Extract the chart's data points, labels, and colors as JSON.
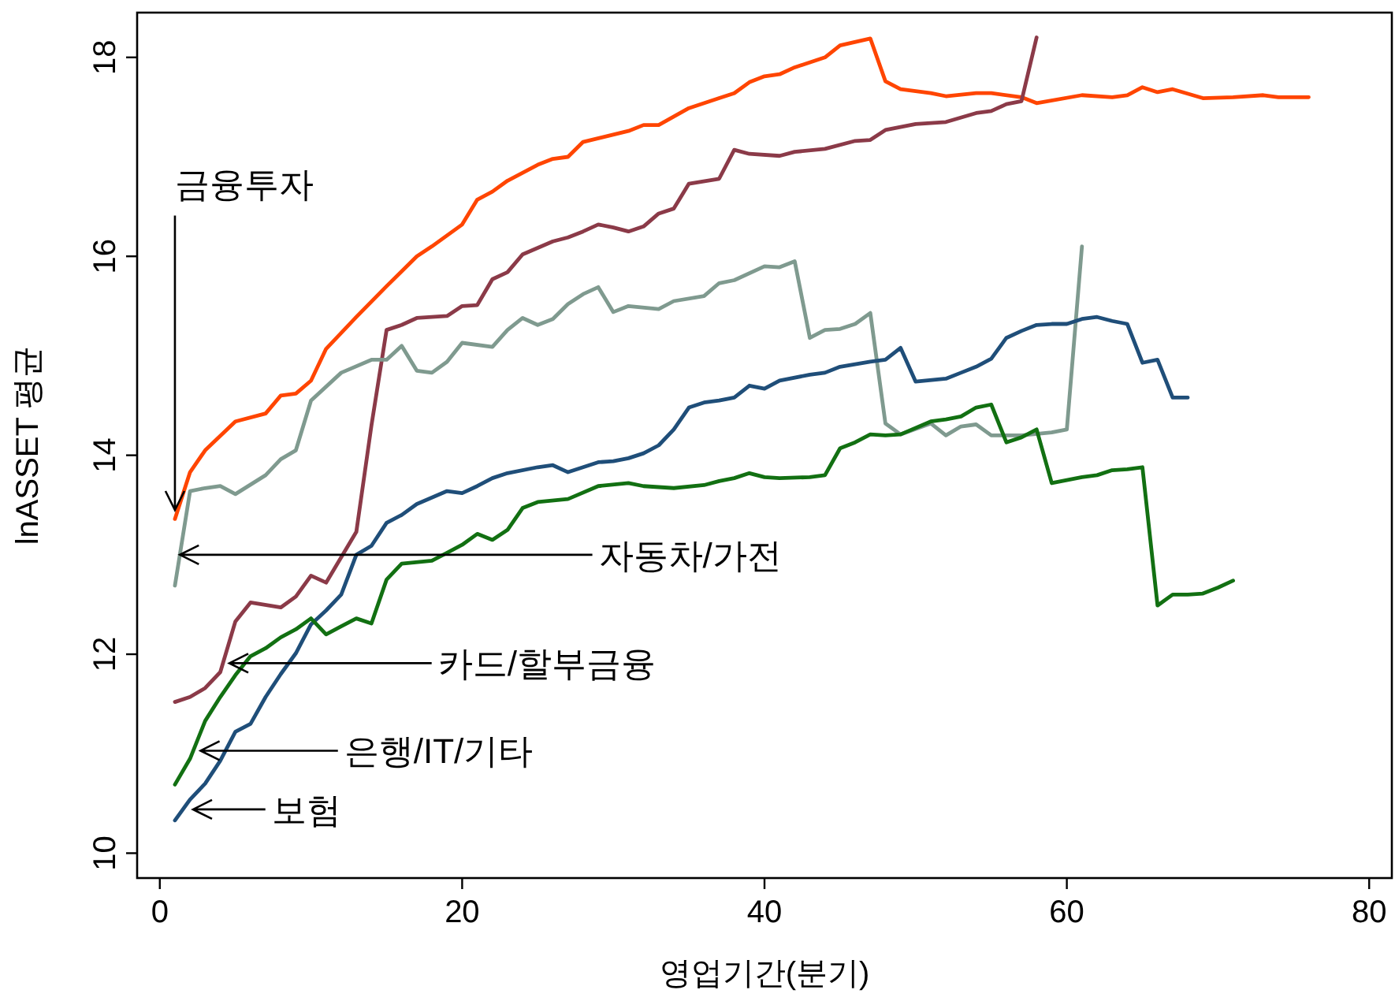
{
  "chart_data": {
    "type": "line",
    "xlabel": "영업기간(분기)",
    "ylabel": "lnASSET 평균",
    "xlim": [
      -1.5,
      81.5
    ],
    "ylim": [
      9.75,
      18.45
    ],
    "xticks": [
      0,
      20,
      40,
      60,
      80
    ],
    "yticks": [
      10,
      12,
      14,
      16,
      18
    ],
    "series": [
      {
        "color": "#ff4500",
        "x": [
          1,
          2,
          3,
          5,
          7,
          8,
          9,
          10,
          11,
          13,
          15,
          17,
          18,
          20,
          21,
          22,
          23,
          25,
          26,
          27,
          28,
          31,
          32,
          33,
          35,
          37,
          38,
          39,
          40,
          41,
          42,
          44,
          45,
          47,
          48,
          49,
          51,
          52,
          54,
          55,
          57,
          58,
          61,
          63,
          64,
          65,
          66,
          67,
          69,
          71,
          73,
          74,
          76
        ],
        "values": [
          13.36,
          13.83,
          14.05,
          14.34,
          14.42,
          14.6,
          14.62,
          14.75,
          15.07,
          15.39,
          15.7,
          16.0,
          16.1,
          16.32,
          16.57,
          16.65,
          16.76,
          16.92,
          16.98,
          17.0,
          17.15,
          17.26,
          17.32,
          17.32,
          17.49,
          17.59,
          17.64,
          17.75,
          17.81,
          17.83,
          17.9,
          18.0,
          18.12,
          18.19,
          17.76,
          17.68,
          17.64,
          17.61,
          17.64,
          17.64,
          17.6,
          17.54,
          17.62,
          17.6,
          17.62,
          17.7,
          17.65,
          17.68,
          17.59,
          17.6,
          17.62,
          17.6,
          17.6
        ]
      },
      {
        "color": "#8b3a48",
        "x": [
          1,
          2,
          3,
          4,
          5,
          6,
          8,
          9,
          10,
          11,
          13,
          14,
          15,
          16,
          17,
          19,
          20,
          21,
          22,
          23,
          24,
          26,
          27,
          28,
          29,
          30,
          31,
          32,
          33,
          34,
          35,
          37,
          38,
          39,
          41,
          42,
          44,
          46,
          47,
          48,
          50,
          52,
          54,
          55,
          56,
          57,
          58
        ],
        "values": [
          11.52,
          11.57,
          11.66,
          11.82,
          12.33,
          12.52,
          12.47,
          12.58,
          12.79,
          12.72,
          13.23,
          14.3,
          15.26,
          15.31,
          15.38,
          15.4,
          15.5,
          15.51,
          15.77,
          15.84,
          16.02,
          16.15,
          16.19,
          16.25,
          16.32,
          16.29,
          16.25,
          16.3,
          16.43,
          16.48,
          16.73,
          16.78,
          17.07,
          17.03,
          17.01,
          17.05,
          17.08,
          17.16,
          17.17,
          17.27,
          17.33,
          17.35,
          17.44,
          17.46,
          17.53,
          17.56,
          18.2
        ]
      },
      {
        "color": "#7f9a8f",
        "x": [
          1,
          2,
          3,
          4,
          5,
          7,
          8,
          9,
          10,
          12,
          14,
          15,
          16,
          17,
          18,
          19,
          20,
          22,
          23,
          24,
          25,
          26,
          27,
          28,
          29,
          30,
          31,
          33,
          34,
          36,
          37,
          38,
          40,
          41,
          42,
          43,
          44,
          45,
          46,
          47,
          48,
          49,
          51,
          52,
          53,
          54,
          55,
          57,
          59,
          60,
          61
        ],
        "values": [
          12.69,
          13.64,
          13.67,
          13.69,
          13.61,
          13.8,
          13.96,
          14.05,
          14.55,
          14.83,
          14.96,
          14.96,
          15.1,
          14.85,
          14.83,
          14.94,
          15.13,
          15.09,
          15.26,
          15.38,
          15.31,
          15.37,
          15.52,
          15.62,
          15.69,
          15.44,
          15.5,
          15.47,
          15.55,
          15.6,
          15.73,
          15.76,
          15.9,
          15.89,
          15.95,
          15.18,
          15.26,
          15.27,
          15.32,
          15.43,
          14.32,
          14.21,
          14.32,
          14.2,
          14.29,
          14.31,
          14.2,
          14.2,
          14.23,
          14.26,
          16.1
        ]
      },
      {
        "color": "#1f4e79",
        "x": [
          1,
          2,
          3,
          4,
          5,
          6,
          7,
          8,
          9,
          10,
          11,
          12,
          13,
          14,
          15,
          16,
          17,
          19,
          20,
          21,
          22,
          23,
          25,
          26,
          27,
          28,
          29,
          30,
          31,
          32,
          33,
          34,
          35,
          36,
          37,
          38,
          39,
          40,
          41,
          43,
          44,
          45,
          47,
          48,
          49,
          50,
          52,
          53,
          54,
          55,
          56,
          57,
          58,
          59,
          60,
          61,
          62,
          63,
          64,
          65,
          66,
          67,
          68
        ],
        "values": [
          10.33,
          10.54,
          10.7,
          10.93,
          11.22,
          11.3,
          11.57,
          11.8,
          12.01,
          12.3,
          12.44,
          12.6,
          13.0,
          13.09,
          13.32,
          13.4,
          13.51,
          13.64,
          13.62,
          13.69,
          13.77,
          13.82,
          13.88,
          13.9,
          13.83,
          13.88,
          13.93,
          13.94,
          13.97,
          14.02,
          14.1,
          14.26,
          14.48,
          14.53,
          14.55,
          14.58,
          14.7,
          14.67,
          14.75,
          14.81,
          14.83,
          14.89,
          14.94,
          14.96,
          15.08,
          14.74,
          14.77,
          14.83,
          14.89,
          14.97,
          15.18,
          15.25,
          15.31,
          15.32,
          15.32,
          15.37,
          15.39,
          15.35,
          15.32,
          14.93,
          14.96,
          14.58,
          14.58
        ]
      },
      {
        "color": "#127012",
        "x": [
          1,
          2,
          3,
          4,
          5,
          6,
          7,
          8,
          9,
          10,
          11,
          12,
          13,
          14,
          15,
          16,
          18,
          19,
          20,
          21,
          22,
          23,
          24,
          25,
          27,
          29,
          31,
          32,
          34,
          36,
          37,
          38,
          39,
          40,
          41,
          43,
          44,
          45,
          46,
          47,
          48,
          49,
          51,
          52,
          53,
          54,
          55,
          56,
          57,
          58,
          59,
          60,
          61,
          62,
          63,
          64,
          65,
          66,
          67,
          68,
          69,
          70,
          71
        ],
        "values": [
          10.69,
          10.95,
          11.33,
          11.57,
          11.79,
          11.98,
          12.06,
          12.17,
          12.25,
          12.36,
          12.2,
          12.28,
          12.36,
          12.31,
          12.75,
          12.91,
          12.94,
          13.02,
          13.1,
          13.21,
          13.15,
          13.25,
          13.47,
          13.53,
          13.56,
          13.69,
          13.72,
          13.69,
          13.67,
          13.7,
          13.74,
          13.77,
          13.82,
          13.78,
          13.77,
          13.78,
          13.8,
          14.07,
          14.13,
          14.21,
          14.2,
          14.21,
          14.34,
          14.36,
          14.39,
          14.48,
          14.51,
          14.13,
          14.18,
          14.26,
          13.72,
          13.75,
          13.78,
          13.8,
          13.85,
          13.86,
          13.88,
          12.49,
          12.6,
          12.6,
          12.61,
          12.67,
          12.74
        ]
      }
    ],
    "annotations": [
      {
        "text": "금융투자",
        "x": 1,
        "y": 13.45
      },
      {
        "text": "자동차/가전",
        "x": 1.33,
        "y": 13.0
      },
      {
        "text": "카드/할부금융",
        "x": 4.6,
        "y": 11.91
      },
      {
        "text": "은행/IT/기타",
        "x": 2.7,
        "y": 11.03
      },
      {
        "text": "보험",
        "x": 2.2,
        "y": 10.44
      }
    ]
  }
}
